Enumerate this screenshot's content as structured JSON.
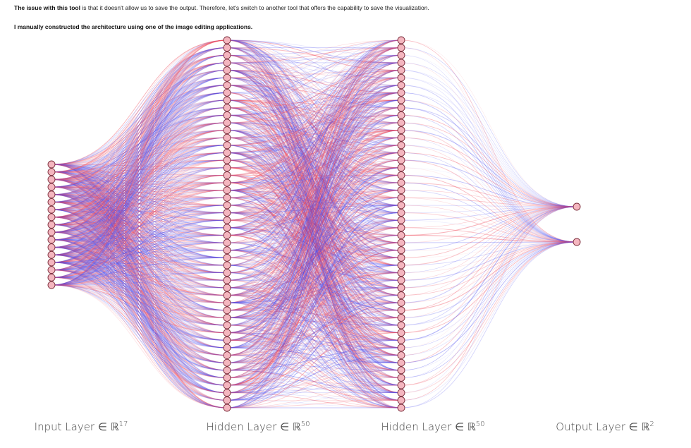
{
  "intro": {
    "line1_bold": "The issue with this tool",
    "line1_rest": " is that it doesn't allow us to save the output. Therefore, let's switch to another tool that offers the capability to save the visualization.",
    "line2": "I manually constructed the architecture using one of the image editing applications."
  },
  "network": {
    "layers": [
      {
        "label": "Input Layer ∈ ℝ",
        "dim": "17",
        "neurons": 17
      },
      {
        "label": "Hidden Layer ∈ ℝ",
        "dim": "50",
        "neurons": 50
      },
      {
        "label": "Hidden Layer ∈ ℝ",
        "dim": "50",
        "neurons": 50
      },
      {
        "label": "Output Layer ∈ ℝ",
        "dim": "2",
        "neurons": 2
      }
    ],
    "colors": {
      "node_fill": "#f4b6bf",
      "node_stroke": "#7a2c3a",
      "positive_edge": "#ef4a5a",
      "negative_edge": "#4a4cef"
    }
  }
}
